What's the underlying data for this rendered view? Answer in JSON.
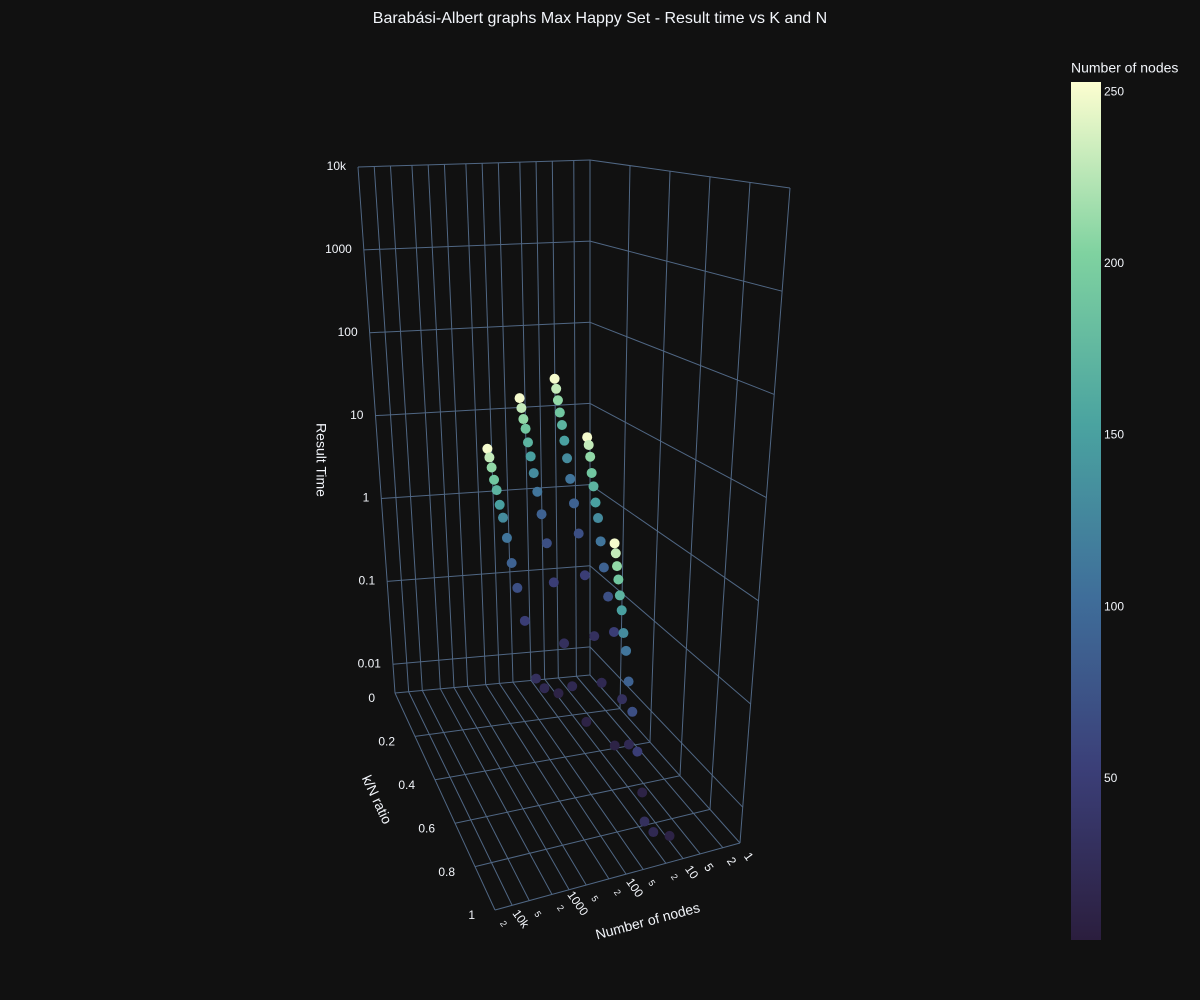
{
  "chart_data": {
    "type": "scatter3d",
    "title": "Barabási-Albert graphs Max Happy Set - Result time vs K and N",
    "x_label": "Number of nodes",
    "y_label": "k/N ratio",
    "z_label": "Result Time",
    "x_log": true,
    "z_log": true,
    "xlim": [
      1,
      20000
    ],
    "ylim": [
      0,
      1
    ],
    "zlim": [
      0.0045,
      10000
    ],
    "xticks": [
      1,
      2,
      5,
      10,
      {
        "value": 20,
        "label": "2"
      },
      {
        "value": 50,
        "label": "5"
      },
      100,
      {
        "value": 200,
        "label": "2"
      },
      {
        "value": 500,
        "label": "5"
      },
      1000,
      {
        "value": 2000,
        "label": "2"
      },
      {
        "value": 5000,
        "label": "5"
      },
      {
        "value": 10000,
        "label": "10k"
      },
      {
        "value": 20000,
        "label": "2"
      }
    ],
    "yticks": [
      0,
      0.2,
      0.4,
      0.6,
      0.8,
      1
    ],
    "zticks": [
      0.01,
      0.1,
      1,
      10,
      100,
      1000,
      {
        "value": 10000,
        "label": "10k"
      }
    ],
    "grid": true,
    "grid_color": "#506784",
    "colorbar": {
      "title": "Number of nodes",
      "clim": [
        3,
        253
      ],
      "ticks": [
        50,
        100,
        150,
        200,
        250
      ],
      "colorscale": [
        "#2b1e3e",
        "#3b3f78",
        "#3f6e9a",
        "#4aa3a0",
        "#7fd2a0",
        "#fdfed0"
      ]
    },
    "series": [
      {
        "name": "Number of nodes",
        "x": [
          10,
          10,
          10,
          10,
          10,
          20,
          20,
          20,
          20,
          20,
          30,
          30,
          30,
          30,
          30,
          50,
          50,
          50,
          50,
          50,
          70,
          70,
          70,
          70,
          70,
          90,
          90,
          90,
          90,
          90,
          110,
          110,
          110,
          110,
          110,
          130,
          130,
          130,
          130,
          130,
          150,
          150,
          150,
          150,
          150,
          170,
          170,
          170,
          170,
          170,
          190,
          190,
          190,
          190,
          190,
          210,
          210,
          210,
          210,
          210,
          230,
          230,
          230,
          230,
          230,
          250,
          250,
          250,
          250,
          250
        ],
        "y": [
          0.1,
          0.3,
          0.5,
          0.7,
          0.9,
          0.1,
          0.3,
          0.5,
          0.7,
          0.9,
          0.1,
          0.3,
          0.5,
          0.7,
          0.9,
          0.1,
          0.3,
          0.5,
          0.7,
          0.9,
          0.1,
          0.3,
          0.5,
          0.7,
          0.9,
          0.1,
          0.3,
          0.5,
          0.7,
          0.9,
          0.1,
          0.3,
          0.5,
          0.7,
          0.9,
          0.1,
          0.3,
          0.5,
          0.7,
          0.9,
          0.1,
          0.3,
          0.5,
          0.7,
          0.9,
          0.1,
          0.3,
          0.5,
          0.7,
          0.9,
          0.1,
          0.3,
          0.5,
          0.7,
          0.9,
          0.1,
          0.3,
          0.5,
          0.7,
          0.9,
          0.1,
          0.3,
          0.5,
          0.7,
          0.9,
          0.1,
          0.3,
          0.5,
          0.7,
          0.9
        ],
        "z": [
          0.005,
          0.006,
          0.008,
          0.006,
          0.005,
          0.006,
          0.016,
          0.04,
          0.02,
          0.006,
          0.008,
          0.05,
          0.13,
          0.06,
          0.008,
          0.04,
          0.25,
          0.6,
          0.3,
          0.04,
          0.1,
          0.7,
          1.7,
          0.7,
          0.1,
          0.2,
          1.5,
          3.6,
          1.4,
          0.2,
          0.4,
          2.7,
          6.6,
          2.6,
          0.4,
          0.7,
          4.4,
          11,
          4.5,
          0.6,
          1,
          6.8,
          17,
          6.5,
          1,
          1.5,
          9.8,
          25,
          9.5,
          1.4,
          2,
          14,
          34,
          13,
          2,
          2.8,
          18,
          46,
          19,
          2.7,
          3.7,
          24,
          61,
          25,
          3.6,
          4.7,
          31,
          78,
          30,
          4.5
        ]
      }
    ]
  }
}
